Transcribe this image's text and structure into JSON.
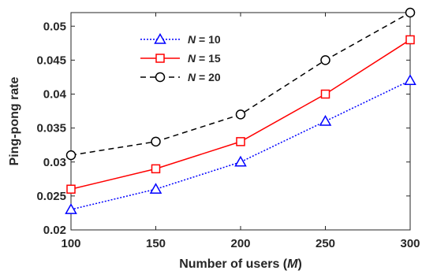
{
  "chart_data": {
    "type": "line",
    "xlabel": "Number of users (M)",
    "xlabel_prefix": "Number of users (",
    "xlabel_var": "M",
    "xlabel_suffix": ")",
    "ylabel": "Ping-pong rate",
    "xlim": [
      100,
      300
    ],
    "ylim": [
      0.02,
      0.052
    ],
    "x": [
      100,
      150,
      200,
      250,
      300
    ],
    "x_ticks": [
      "100",
      "150",
      "200",
      "250",
      "300"
    ],
    "y_ticks": [
      0.02,
      0.025,
      0.03,
      0.035,
      0.04,
      0.045,
      0.05
    ],
    "y_tick_labels": [
      "0.02",
      "0.025",
      "0.03",
      "0.035",
      "0.04",
      "0.045",
      "0.05"
    ],
    "grid": false,
    "legend_position": "top-left",
    "series": [
      {
        "name": "N = 10",
        "name_var": "N",
        "name_suffix": " = 10",
        "values": [
          0.023,
          0.026,
          0.03,
          0.036,
          0.042
        ],
        "color": "#0000ff",
        "line_style": "dotted",
        "marker": "triangle"
      },
      {
        "name": "N = 15",
        "name_var": "N",
        "name_suffix": " = 15",
        "values": [
          0.026,
          0.029,
          0.033,
          0.04,
          0.048
        ],
        "color": "#ff0000",
        "line_style": "solid",
        "marker": "square"
      },
      {
        "name": "N = 20",
        "name_var": "N",
        "name_suffix": " = 20",
        "values": [
          0.031,
          0.033,
          0.037,
          0.045,
          0.052
        ],
        "color": "#000000",
        "line_style": "dashed",
        "marker": "circle"
      }
    ]
  }
}
